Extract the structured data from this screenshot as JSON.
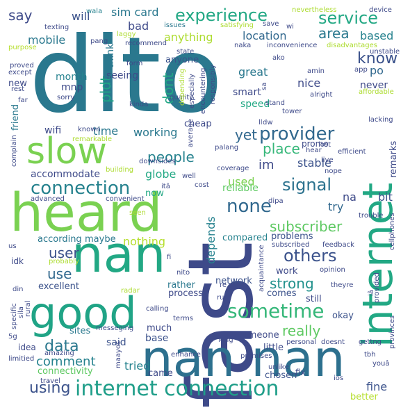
{
  "words": [
    {
      "text": "dito",
      "color": "#2a788e",
      "orientation": "horizontal"
    },
    {
      "text": "fast",
      "color": "#3e4a89",
      "orientation": "vertical"
    },
    {
      "text": "heard",
      "color": "#7ad151",
      "orientation": "horizontal"
    },
    {
      "text": "nan",
      "color": "#22a884",
      "orientation": "horizontal"
    },
    {
      "text": "nan nan",
      "color": "#2d708e",
      "orientation": "horizontal"
    },
    {
      "text": "internet",
      "color": "#22a884",
      "orientation": "vertical"
    },
    {
      "text": "good",
      "color": "#20a486",
      "orientation": "horizontal"
    },
    {
      "text": "slow",
      "color": "#7ad151",
      "orientation": "horizontal"
    },
    {
      "text": "internet connection",
      "color": "#1f9e89",
      "orientation": "horizontal"
    },
    {
      "text": "connection",
      "color": "#26828e",
      "orientation": "horizontal"
    },
    {
      "text": "provider",
      "color": "#31688e",
      "orientation": "horizontal"
    },
    {
      "text": "sometime",
      "color": "#35b779",
      "orientation": "horizontal"
    },
    {
      "text": "experience",
      "color": "#22a884",
      "orientation": "horizontal"
    },
    {
      "text": "service",
      "color": "#22a884",
      "orientation": "horizontal"
    },
    {
      "text": "signal",
      "color": "#2c728e",
      "orientation": "horizontal"
    },
    {
      "text": "none",
      "color": "#31688e",
      "orientation": "horizontal"
    },
    {
      "text": "others",
      "color": "#3b528b",
      "orientation": "horizontal"
    },
    {
      "text": "data",
      "color": "#2a788e",
      "orientation": "horizontal"
    },
    {
      "text": "using",
      "color": "#3b528b",
      "orientation": "horizontal"
    },
    {
      "text": "comment",
      "color": "#26828e",
      "orientation": "horizontal"
    },
    {
      "text": "strong",
      "color": "#21918c",
      "orientation": "horizontal"
    },
    {
      "text": "really",
      "color": "#5ec962",
      "orientation": "horizontal"
    },
    {
      "text": "people",
      "color": "#26828e",
      "orientation": "horizontal"
    },
    {
      "text": "subscriber",
      "color": "#5ec962",
      "orientation": "horizontal"
    },
    {
      "text": "know",
      "color": "#3b528b",
      "orientation": "horizontal"
    },
    {
      "text": "area",
      "color": "#2a788e",
      "orientation": "horizontal"
    },
    {
      "text": "place",
      "color": "#35b779",
      "orientation": "horizontal"
    },
    {
      "text": "yet",
      "color": "#31688e",
      "orientation": "horizontal"
    },
    {
      "text": "say",
      "color": "#3e4a89",
      "orientation": "horizontal"
    },
    {
      "text": "dont",
      "color": "#22a884",
      "orientation": "vertical"
    },
    {
      "text": "pldt",
      "color": "#20a486",
      "orientation": "vertical"
    },
    {
      "text": "user",
      "color": "#3b528b",
      "orientation": "horizontal"
    },
    {
      "text": "use",
      "color": "#31688e",
      "orientation": "horizontal"
    },
    {
      "text": "nothing",
      "color": "#b5de2b",
      "orientation": "horizontal"
    },
    {
      "text": "depends",
      "color": "#26828e",
      "orientation": "vertical"
    },
    {
      "text": "fine",
      "color": "#3b528b",
      "orientation": "horizontal"
    },
    {
      "text": "tried",
      "color": "#26828e",
      "orientation": "horizontal"
    },
    {
      "text": "sim card",
      "color": "#2a788e",
      "orientation": "horizontal"
    },
    {
      "text": "will",
      "color": "#3b528b",
      "orientation": "horizontal"
    },
    {
      "text": "anything",
      "color": "#addc30",
      "orientation": "horizontal"
    },
    {
      "text": "working",
      "color": "#2a788e",
      "orientation": "horizontal"
    },
    {
      "text": "accommodate",
      "color": "#3e4a89",
      "orientation": "horizontal"
    },
    {
      "text": "globe",
      "color": "#22a884",
      "orientation": "horizontal"
    },
    {
      "text": "mobile",
      "color": "#2a788e",
      "orientation": "horizontal"
    },
    {
      "text": "bad",
      "color": "#3e4a89",
      "orientation": "horizontal"
    },
    {
      "text": "time",
      "color": "#2a788e",
      "orientation": "horizontal"
    },
    {
      "text": "im",
      "color": "#3e4a89",
      "orientation": "horizontal"
    },
    {
      "text": "stable",
      "color": "#3b528b",
      "orientation": "horizontal"
    },
    {
      "text": "try",
      "color": "#31688e",
      "orientation": "horizontal"
    },
    {
      "text": "na",
      "color": "#3e4a89",
      "orientation": "horizontal"
    },
    {
      "text": "bit",
      "color": "#3b528b",
      "orientation": "horizontal"
    },
    {
      "text": "used",
      "color": "#7ad151",
      "orientation": "horizontal"
    },
    {
      "text": "reliable",
      "color": "#5ec962",
      "orientation": "horizontal"
    },
    {
      "text": "great",
      "color": "#2a788e",
      "orientation": "horizontal"
    },
    {
      "text": "location",
      "color": "#31688e",
      "orientation": "horizontal"
    },
    {
      "text": "based",
      "color": "#26828e",
      "orientation": "horizontal"
    },
    {
      "text": "po",
      "color": "#31688e",
      "orientation": "horizontal"
    },
    {
      "text": "nice",
      "color": "#3e4a89",
      "orientation": "horizontal"
    },
    {
      "text": "never",
      "color": "#3e4a89",
      "orientation": "horizontal"
    },
    {
      "text": "smart",
      "color": "#3e4a89",
      "orientation": "horizontal"
    },
    {
      "text": "speed",
      "color": "#22a884",
      "orientation": "horizontal"
    },
    {
      "text": "seeing",
      "color": "#3e4a89",
      "orientation": "horizontal"
    },
    {
      "text": "month",
      "color": "#26828e",
      "orientation": "horizontal"
    },
    {
      "text": "mnp",
      "color": "#3e4a89",
      "orientation": "horizontal"
    },
    {
      "text": "new",
      "color": "#3e4a89",
      "orientation": "horizontal"
    },
    {
      "text": "think",
      "color": "#2a788e",
      "orientation": "vertical"
    },
    {
      "text": "anyone",
      "color": "#3b528b",
      "orientation": "horizontal"
    },
    {
      "text": "wifi",
      "color": "#3e4a89",
      "orientation": "horizontal"
    },
    {
      "text": "cheap",
      "color": "#3e4a89",
      "orientation": "horizontal"
    },
    {
      "text": "problems",
      "color": "#3b528b",
      "orientation": "horizontal"
    },
    {
      "text": "according",
      "color": "#2a788e",
      "orientation": "horizontal"
    },
    {
      "text": "maybe",
      "color": "#2a788e",
      "orientation": "horizontal"
    },
    {
      "text": "compared",
      "color": "#26828e",
      "orientation": "horizontal"
    },
    {
      "text": "network",
      "color": "#3b528b",
      "orientation": "horizontal"
    },
    {
      "text": "excellent",
      "color": "#3b528b",
      "orientation": "horizontal"
    },
    {
      "text": "rather",
      "color": "#2a788e",
      "orientation": "horizontal"
    },
    {
      "text": "process",
      "color": "#3e4a89",
      "orientation": "horizontal"
    },
    {
      "text": "sites",
      "color": "#2a788e",
      "orientation": "horizontal"
    },
    {
      "text": "much",
      "color": "#3e4a89",
      "orientation": "horizontal"
    },
    {
      "text": "base",
      "color": "#3b528b",
      "orientation": "horizontal"
    },
    {
      "text": "said",
      "color": "#3b528b",
      "orientation": "horizontal"
    },
    {
      "text": "came",
      "color": "#3e4a89",
      "orientation": "horizontal"
    },
    {
      "text": "comes",
      "color": "#3b528b",
      "orientation": "horizontal"
    },
    {
      "text": "still",
      "color": "#3e4a89",
      "orientation": "horizontal"
    },
    {
      "text": "okay",
      "color": "#3b528b",
      "orientation": "horizontal"
    },
    {
      "text": "someone",
      "color": "#3e4a89",
      "orientation": "horizontal"
    },
    {
      "text": "little",
      "color": "#3e4a89",
      "orientation": "horizontal"
    },
    {
      "text": "chosen",
      "color": "#3b528b",
      "orientation": "horizontal"
    },
    {
      "text": "better",
      "color": "#b5de2b",
      "orientation": "horizontal"
    },
    {
      "text": "work",
      "color": "#3e4a89",
      "orientation": "horizontal"
    },
    {
      "text": "connectivity",
      "color": "#5ec962",
      "orientation": "horizontal"
    },
    {
      "text": "friend",
      "color": "#2a788e",
      "orientation": "vertical"
    },
    {
      "text": "remarks",
      "color": "#3e4a89",
      "orientation": "vertical"
    },
    {
      "text": "promo",
      "color": "#3e4a89",
      "orientation": "horizontal"
    },
    {
      "text": "now",
      "color": "#22a884",
      "orientation": "horizontal"
    },
    {
      "text": "idk",
      "color": "#3e4a89",
      "orientation": "horizontal"
    },
    {
      "text": "idea",
      "color": "#3e4a89",
      "orientation": "horizontal"
    },
    {
      "text": "fix",
      "color": "#3e4a89",
      "orientation": "horizontal"
    },
    {
      "text": "texting",
      "color": "#3e4a89",
      "orientation": "horizontal"
    },
    {
      "text": "pang",
      "color": "#3e4a89",
      "orientation": "horizontal"
    },
    {
      "text": "laggy",
      "color": "#addc30",
      "orientation": "horizontal"
    },
    {
      "text": "recommend",
      "color": "#3e4a89",
      "orientation": "horizontal"
    },
    {
      "text": "wala",
      "color": "#26828e",
      "orientation": "horizontal"
    },
    {
      "text": "issues",
      "color": "#2a788e",
      "orientation": "horizontal"
    },
    {
      "text": "satisfying",
      "color": "#addc30",
      "orientation": "horizontal"
    },
    {
      "text": "save",
      "color": "#3e4a89",
      "orientation": "horizontal"
    },
    {
      "text": "wi",
      "color": "#3e4a89",
      "orientation": "horizontal"
    },
    {
      "text": "nevertheless",
      "color": "#addc30",
      "orientation": "horizontal"
    },
    {
      "text": "device",
      "color": "#3e4a89",
      "orientation": "horizontal"
    },
    {
      "text": "purpose",
      "color": "#b5de2b",
      "orientation": "horizontal"
    },
    {
      "text": "naka",
      "color": "#3e4a89",
      "orientation": "horizontal"
    },
    {
      "text": "inconvenience",
      "color": "#3e4a89",
      "orientation": "horizontal"
    },
    {
      "text": "disadvantages",
      "color": "#addc30",
      "orientation": "horizontal"
    },
    {
      "text": "unstable",
      "color": "#3e4a89",
      "orientation": "horizontal"
    },
    {
      "text": "state",
      "color": "#3e4a89",
      "orientation": "horizontal"
    },
    {
      "text": "ako",
      "color": "#3e4a89",
      "orientation": "horizontal"
    },
    {
      "text": "proved",
      "color": "#3e4a89",
      "orientation": "horizontal"
    },
    {
      "text": "form",
      "color": "#3e4a89",
      "orientation": "horizontal"
    },
    {
      "text": "amin",
      "color": "#3e4a89",
      "orientation": "horizontal"
    },
    {
      "text": "app",
      "color": "#3e4a89",
      "orientation": "horizontal"
    },
    {
      "text": "except",
      "color": "#3e4a89",
      "orientation": "horizontal"
    },
    {
      "text": "rest",
      "color": "#3e4a89",
      "orientation": "horizontal"
    },
    {
      "text": "sorry",
      "color": "#3e4a89",
      "orientation": "horizontal"
    },
    {
      "text": "alright",
      "color": "#3e4a89",
      "orientation": "horizontal"
    },
    {
      "text": "affordable",
      "color": "#addc30",
      "orientation": "horizontal"
    },
    {
      "text": "far",
      "color": "#3e4a89",
      "orientation": "horizontal"
    },
    {
      "text": "kinda",
      "color": "#3e4a89",
      "orientation": "horizontal"
    },
    {
      "text": "quality",
      "color": "#3e4a89",
      "orientation": "horizontal"
    },
    {
      "text": "especially",
      "color": "#3e4a89",
      "orientation": "vertical"
    },
    {
      "text": "encountering",
      "color": "#3e4a89",
      "orientation": "vertical"
    },
    {
      "text": "responsibly",
      "color": "#3e4a89",
      "orientation": "vertical"
    },
    {
      "text": "depending",
      "color": "#addc30",
      "orientation": "vertical"
    },
    {
      "text": "tower",
      "color": "#3e4a89",
      "orientation": "horizontal"
    },
    {
      "text": "lacking",
      "color": "#3e4a89",
      "orientation": "horizontal"
    },
    {
      "text": "known",
      "color": "#3e4a89",
      "orientation": "horizontal"
    },
    {
      "text": "remarkable",
      "color": "#addc30",
      "orientation": "horizontal"
    },
    {
      "text": "average",
      "color": "#3e4a89",
      "orientation": "vertical"
    },
    {
      "text": "stand",
      "color": "#3e4a89",
      "orientation": "horizontal"
    },
    {
      "text": "dw",
      "color": "#3e4a89",
      "orientation": "horizontal"
    },
    {
      "text": "lost",
      "color": "#3e4a89",
      "orientation": "horizontal"
    },
    {
      "text": "efficient",
      "color": "#3e4a89",
      "orientation": "horizontal"
    },
    {
      "text": "complain",
      "color": "#3e4a89",
      "orientation": "vertical"
    },
    {
      "text": "downsides",
      "color": "#3e4a89",
      "orientation": "horizontal"
    },
    {
      "text": "palang",
      "color": "#3e4a89",
      "orientation": "horizontal"
    },
    {
      "text": "hear",
      "color": "#3e4a89",
      "orientation": "horizontal"
    },
    {
      "text": "live",
      "color": "#3e4a89",
      "orientation": "horizontal"
    },
    {
      "text": "building",
      "color": "#addc30",
      "orientation": "horizontal"
    },
    {
      "text": "coverage",
      "color": "#3e4a89",
      "orientation": "horizontal"
    },
    {
      "text": "nope",
      "color": "#3e4a89",
      "orientation": "horizontal"
    },
    {
      "text": "well",
      "color": "#3e4a89",
      "orientation": "horizontal"
    },
    {
      "text": "cost",
      "color": "#3e4a89",
      "orientation": "horizontal"
    },
    {
      "text": "dipa",
      "color": "#3e4a89",
      "orientation": "horizontal"
    },
    {
      "text": "itâ",
      "color": "#3e4a89",
      "orientation": "horizontal"
    },
    {
      "text": "advanced",
      "color": "#3e4a89",
      "orientation": "horizontal"
    },
    {
      "text": "convenient",
      "color": "#3e4a89",
      "orientation": "horizontal"
    },
    {
      "text": "seen",
      "color": "#addc30",
      "orientation": "horizontal"
    },
    {
      "text": "trouble",
      "color": "#3e4a89",
      "orientation": "horizontal"
    },
    {
      "text": "cellphones",
      "color": "#3e4a89",
      "orientation": "vertical"
    },
    {
      "text": "subscribed",
      "color": "#3e4a89",
      "orientation": "horizontal"
    },
    {
      "text": "feedback",
      "color": "#3e4a89",
      "orientation": "horizontal"
    },
    {
      "text": "us",
      "color": "#3e4a89",
      "orientation": "horizontal"
    },
    {
      "text": "probably",
      "color": "#addc30",
      "orientation": "horizontal"
    },
    {
      "text": "fi",
      "color": "#3e4a89",
      "orientation": "horizontal"
    },
    {
      "text": "acquaintance",
      "color": "#3e4a89",
      "orientation": "vertical"
    },
    {
      "text": "opinion",
      "color": "#3e4a89",
      "orientation": "horizontal"
    },
    {
      "text": "provided",
      "color": "#3e4a89",
      "orientation": "vertical"
    },
    {
      "text": "din",
      "color": "#3e4a89",
      "orientation": "horizontal"
    },
    {
      "text": "radar",
      "color": "#addc30",
      "orientation": "horizontal"
    },
    {
      "text": "nito",
      "color": "#3e4a89",
      "orientation": "horizontal"
    },
    {
      "text": "re",
      "color": "#3e4a89",
      "orientation": "horizontal"
    },
    {
      "text": "theyre",
      "color": "#3e4a89",
      "orientation": "horizontal"
    },
    {
      "text": "iâ",
      "color": "#3e4a89",
      "orientation": "vertical"
    },
    {
      "text": "specific",
      "color": "#3e4a89",
      "orientation": "vertical"
    },
    {
      "text": "rural",
      "color": "#3e4a89",
      "orientation": "vertical"
    },
    {
      "text": "calling",
      "color": "#3e4a89",
      "orientation": "horizontal"
    },
    {
      "text": "run",
      "color": "#3e4a89",
      "orientation": "horizontal"
    },
    {
      "text": "terms",
      "color": "#3e4a89",
      "orientation": "horizontal"
    },
    {
      "text": "5g",
      "color": "#3e4a89",
      "orientation": "horizontal"
    },
    {
      "text": "sila",
      "color": "#3e4a89",
      "orientation": "vertical"
    },
    {
      "text": "messeging",
      "color": "#3e4a89",
      "orientation": "horizontal"
    },
    {
      "text": "enhance",
      "color": "#3e4a89",
      "orientation": "horizontal"
    },
    {
      "text": "long",
      "color": "#3e4a89",
      "orientation": "horizontal"
    },
    {
      "text": "personal",
      "color": "#3e4a89",
      "orientation": "horizontal"
    },
    {
      "text": "doesnt",
      "color": "#3e4a89",
      "orientation": "horizontal"
    },
    {
      "text": "gettng",
      "color": "#3e4a89",
      "orientation": "horizontal"
    },
    {
      "text": "provinces",
      "color": "#3e4a89",
      "orientation": "vertical"
    },
    {
      "text": "amazing",
      "color": "#3e4a89",
      "orientation": "horizontal"
    },
    {
      "text": "promises",
      "color": "#3e4a89",
      "orientation": "horizontal"
    },
    {
      "text": "tbh",
      "color": "#3e4a89",
      "orientation": "horizontal"
    },
    {
      "text": "limitied",
      "color": "#3e4a89",
      "orientation": "horizontal"
    },
    {
      "text": "maayos",
      "color": "#3e4a89",
      "orientation": "vertical"
    },
    {
      "text": "unlike",
      "color": "#3e4a89",
      "orientation": "horizontal"
    },
    {
      "text": "youâ",
      "color": "#3e4a89",
      "orientation": "horizontal"
    },
    {
      "text": "travel",
      "color": "#3e4a89",
      "orientation": "horizontal"
    },
    {
      "text": "ios",
      "color": "#3e4a89",
      "orientation": "horizontal"
    },
    {
      "text": "sa",
      "color": "#3e4a89",
      "orientation": "vertical"
    },
    {
      "text": "ll",
      "color": "#3e4a89",
      "orientation": "horizontal"
    }
  ]
}
